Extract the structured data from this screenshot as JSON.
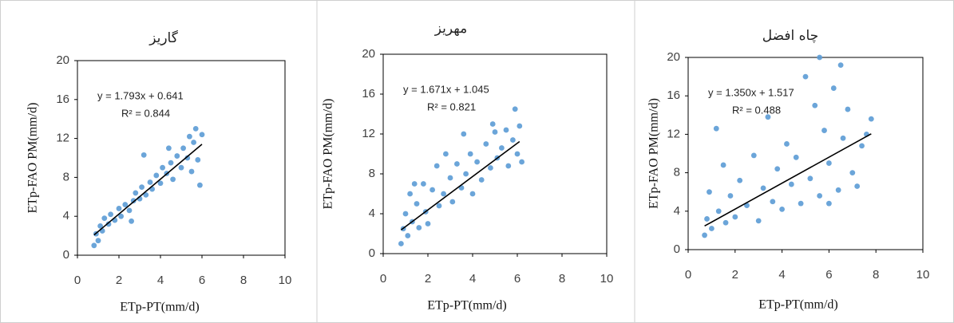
{
  "chart_data": [
    {
      "type": "scatter",
      "title": "گاریز",
      "xlabel": "ETp-PT(mm/d)",
      "ylabel": "ETp-FAO PM(mm/d)",
      "annotations": [
        "y = 1.793x + 0.641",
        "R² = 0.844"
      ],
      "xlim": [
        0,
        10
      ],
      "ylim": [
        0,
        20
      ],
      "xticks": [
        0,
        2,
        4,
        6,
        8,
        10
      ],
      "yticks": [
        0,
        4,
        8,
        12,
        16,
        20
      ],
      "series": [
        {
          "mode": "markers",
          "color": "#5b9bd5",
          "x": [
            0.8,
            0.9,
            1.0,
            1.1,
            1.2,
            1.3,
            1.5,
            1.6,
            1.8,
            2.0,
            2.1,
            2.3,
            2.5,
            2.7,
            2.8,
            3.0,
            3.1,
            3.3,
            3.5,
            3.6,
            3.8,
            4.0,
            4.1,
            4.3,
            4.5,
            4.6,
            4.8,
            5.0,
            5.1,
            5.3,
            5.4,
            5.5,
            5.6,
            5.7,
            5.8,
            5.9,
            6.0,
            3.2,
            2.6,
            4.4
          ],
          "values": [
            1.0,
            2.2,
            1.5,
            3.0,
            2.5,
            3.8,
            3.2,
            4.2,
            3.6,
            4.8,
            4.0,
            5.2,
            4.6,
            5.6,
            6.4,
            5.8,
            7.0,
            6.2,
            7.5,
            6.8,
            8.2,
            7.4,
            9.0,
            8.4,
            9.5,
            7.8,
            10.2,
            9.0,
            11.0,
            10.0,
            12.2,
            8.6,
            11.6,
            13.0,
            9.8,
            7.2,
            12.4,
            10.3,
            3.5,
            11.0
          ]
        },
        {
          "mode": "line",
          "color": "#000000",
          "x": [
            0.8,
            6.0
          ],
          "values": [
            2.08,
            11.4
          ]
        }
      ]
    },
    {
      "type": "scatter",
      "title": "مهریز",
      "xlabel": "ETp-PT(mm/d)",
      "ylabel": "ETp-FAO PM(mm/d)",
      "annotations": [
        "y = 1.671x + 1.045",
        "R² = 0.821"
      ],
      "xlim": [
        0,
        10
      ],
      "ylim": [
        0,
        20
      ],
      "xticks": [
        0,
        2,
        4,
        6,
        8,
        10
      ],
      "yticks": [
        0,
        4,
        8,
        12,
        16,
        20
      ],
      "series": [
        {
          "mode": "markers",
          "color": "#5b9bd5",
          "x": [
            0.8,
            0.9,
            1.0,
            1.1,
            1.2,
            1.3,
            1.5,
            1.6,
            1.8,
            1.9,
            2.0,
            2.2,
            2.4,
            2.5,
            2.7,
            3.0,
            3.1,
            3.3,
            3.5,
            3.7,
            3.9,
            4.0,
            4.2,
            4.4,
            4.6,
            4.8,
            5.0,
            5.1,
            5.3,
            5.5,
            5.6,
            5.8,
            5.9,
            6.0,
            6.1,
            6.2,
            3.6,
            2.8,
            1.4,
            4.9
          ],
          "values": [
            1.0,
            2.5,
            4.0,
            1.8,
            6.0,
            3.2,
            5.0,
            2.6,
            7.0,
            4.2,
            3.0,
            6.4,
            8.8,
            4.8,
            6.0,
            7.6,
            5.2,
            9.0,
            6.6,
            8.0,
            10.0,
            6.0,
            9.2,
            7.4,
            11.0,
            8.6,
            12.2,
            9.6,
            10.6,
            12.4,
            8.8,
            11.4,
            14.5,
            10.0,
            12.8,
            9.2,
            12.0,
            10.0,
            7.0,
            13.0
          ]
        },
        {
          "mode": "line",
          "color": "#000000",
          "x": [
            0.8,
            6.1
          ],
          "values": [
            2.38,
            11.24
          ]
        }
      ]
    },
    {
      "type": "scatter",
      "title": "چاه افضل",
      "xlabel": "ETp-PT(mm/d)",
      "ylabel": "ETp-FAO PM(mm/d)",
      "annotations": [
        "y = 1.350x + 1.517",
        "R² = 0.488"
      ],
      "xlim": [
        0,
        10
      ],
      "ylim": [
        0,
        20
      ],
      "xticks": [
        0,
        2,
        4,
        6,
        8,
        10
      ],
      "yticks": [
        0,
        4,
        8,
        12,
        16,
        20
      ],
      "series": [
        {
          "mode": "markers",
          "color": "#5b9bd5",
          "x": [
            0.7,
            0.8,
            0.9,
            1.0,
            1.2,
            1.3,
            1.5,
            1.6,
            1.8,
            2.0,
            2.2,
            2.5,
            2.8,
            3.0,
            3.2,
            3.4,
            3.6,
            3.8,
            4.0,
            4.2,
            4.4,
            4.6,
            4.8,
            5.0,
            5.2,
            5.4,
            5.6,
            5.6,
            5.8,
            6.0,
            6.2,
            6.4,
            6.5,
            6.6,
            6.8,
            7.0,
            7.2,
            7.4,
            7.6,
            7.8,
            6.0
          ],
          "values": [
            1.5,
            3.2,
            6.0,
            2.2,
            12.6,
            4.0,
            8.8,
            2.8,
            5.6,
            3.4,
            7.2,
            4.6,
            9.8,
            3.0,
            6.4,
            13.8,
            5.0,
            8.4,
            4.2,
            11.0,
            6.8,
            9.6,
            4.8,
            18.0,
            7.4,
            15.0,
            20.0,
            5.6,
            12.4,
            9.0,
            16.8,
            6.2,
            19.2,
            11.6,
            14.6,
            8.0,
            6.6,
            10.8,
            12.0,
            13.6,
            4.8
          ]
        },
        {
          "mode": "line",
          "color": "#000000",
          "x": [
            0.7,
            7.8
          ],
          "values": [
            2.46,
            12.05
          ]
        }
      ]
    }
  ]
}
